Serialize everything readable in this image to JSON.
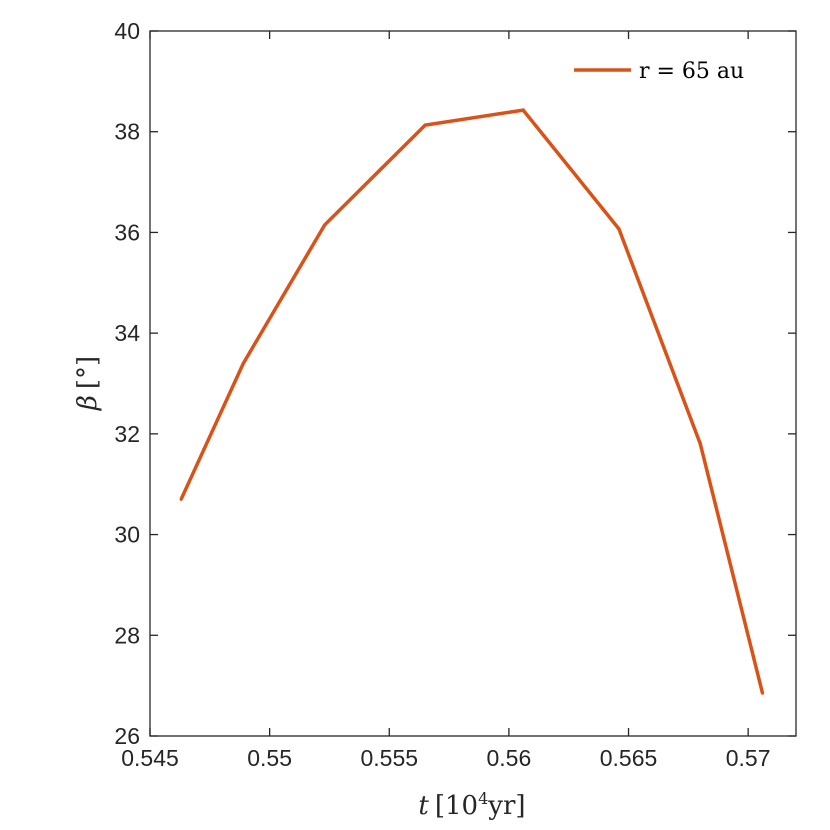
{
  "chart_data": {
    "type": "line",
    "xlabel_var": "t",
    "xlabel_unit_open": "[10",
    "xlabel_unit_exp": "4",
    "xlabel_unit_close": "yr]",
    "ylabel_var": "β",
    "ylabel_unit": "[°]",
    "xlim": [
      0.545,
      0.572
    ],
    "ylim": [
      26,
      40
    ],
    "xticks": [
      0.545,
      0.55,
      0.555,
      0.56,
      0.565,
      0.57
    ],
    "xtick_labels": [
      "0.545",
      "0.55",
      "0.555",
      "0.56",
      "0.565",
      "0.57"
    ],
    "yticks": [
      26,
      28,
      30,
      32,
      34,
      36,
      38,
      40
    ],
    "ytick_labels": [
      "26",
      "28",
      "30",
      "32",
      "34",
      "36",
      "38",
      "40"
    ],
    "grid": false,
    "legend_position": "top-right",
    "series": [
      {
        "name": "r = 65 au",
        "color": "#d95319",
        "x": [
          0.5463,
          0.5489,
          0.5523,
          0.5565,
          0.5606,
          0.5646,
          0.568,
          0.5706
        ],
        "y": [
          30.7,
          33.4,
          36.15,
          38.13,
          38.43,
          36.07,
          31.8,
          26.85
        ]
      }
    ]
  }
}
